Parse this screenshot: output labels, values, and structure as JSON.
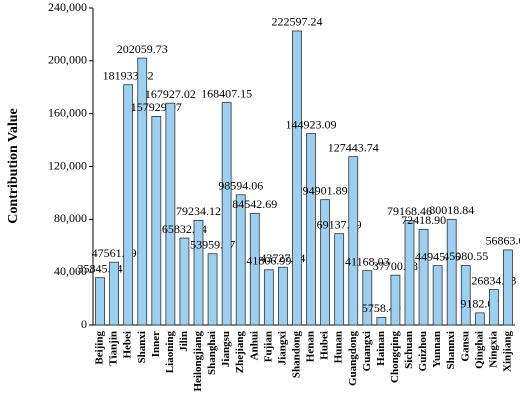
{
  "chart_data": {
    "type": "bar",
    "y_label": "Contribution Value",
    "categories": [
      "Beijing",
      "Tianjin",
      "Hebei",
      "Shanxi",
      "Inner",
      "Liaoning",
      "Jilin",
      "Heilongjiang",
      "Shanghai",
      "Jiangsu",
      "Zhejiang",
      "Anhui",
      "Fujian",
      "Jiangxi",
      "Shandong",
      "Henan",
      "Hubei",
      "Hunan",
      "Guangdong",
      "Guangxi",
      "Hainan",
      "Chongqing",
      "Sichuan",
      "Guizhou",
      "Yunnan",
      "Shannxi",
      "Gansu",
      "Qinghai",
      "Ningxia",
      "Xinjiang"
    ],
    "values": [
      35845.74,
      47561.39,
      181933.42,
      202059.73,
      157929.97,
      167927.02,
      65832.84,
      79234.12,
      53959.77,
      168407.15,
      98594.06,
      84542.69,
      41806.99,
      43727.84,
      222597.24,
      144923.09,
      94901.89,
      69137.19,
      127443.74,
      41168.03,
      5758.49,
      37700.58,
      79168.46,
      72418.9,
      44945.76,
      80018.84,
      45080.55,
      9182.07,
      26834.83,
      56863.07
    ],
    "value_labels": [
      "35845.74",
      "47561.39",
      "181933.42",
      "202059.73",
      "157929.97",
      "167927.02",
      "65832.84",
      "79234.12",
      "53959.77",
      "168407.15",
      "98594.06",
      "84542.69",
      "41806.99",
      "43727.84",
      "222597.24",
      "144923.09",
      "94901.89",
      "69137.19",
      "127443.74",
      "41168.03",
      "5758.49",
      "37700.58",
      "79168.46",
      "72418.90",
      "44945.76",
      "80018.84",
      "45080.55",
      "9182.07",
      "26834.83",
      "56863.07"
    ],
    "color": "#9dd0f0",
    "ylim": [
      0,
      240000
    ],
    "yticks": [
      0,
      {
        "value": 40000,
        "label": "40,000"
      },
      {
        "value": 80000,
        "label": "80,000"
      },
      {
        "value": 120000,
        "label": "120,000"
      },
      {
        "value": 160000,
        "label": "160,000"
      },
      {
        "value": 200000,
        "label": "200,000"
      },
      {
        "value": 240000,
        "label": "240,000"
      }
    ],
    "grid": false
  }
}
